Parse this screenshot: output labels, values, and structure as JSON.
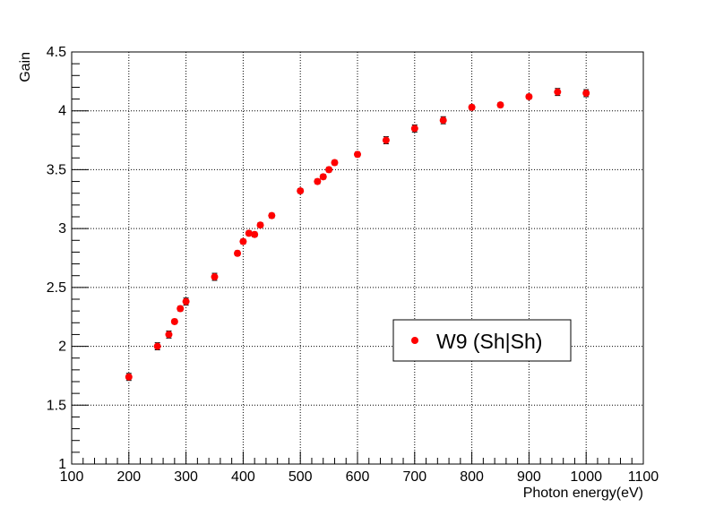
{
  "chart_data": {
    "type": "scatter",
    "title": "",
    "xlabel": "Photon energy(eV)",
    "ylabel": "Gain",
    "xlim": [
      100,
      1100
    ],
    "ylim": [
      1,
      4.5
    ],
    "x_ticks": [
      100,
      200,
      300,
      400,
      500,
      600,
      700,
      800,
      900,
      1000,
      1100
    ],
    "x_tick_labels": [
      "100",
      "200",
      "300",
      "400",
      "500",
      "600",
      "700",
      "800",
      "900",
      "1000",
      "1100"
    ],
    "y_ticks": [
      1,
      1.5,
      2,
      2.5,
      3,
      3.5,
      4,
      4.5
    ],
    "y_tick_labels": [
      "1",
      "1.5",
      "2",
      "2.5",
      "3",
      "3.5",
      "4",
      "4.5"
    ],
    "grid": true,
    "legend_position": "center-right",
    "marker_color": "#ff0000",
    "series": [
      {
        "name": "W9 (Sh|Sh)",
        "points": [
          {
            "x": 200,
            "y": 1.74,
            "err": 0.03
          },
          {
            "x": 250,
            "y": 2.0,
            "err": 0.03
          },
          {
            "x": 270,
            "y": 2.1,
            "err": 0.03
          },
          {
            "x": 280,
            "y": 2.21,
            "err": 0.02
          },
          {
            "x": 290,
            "y": 2.32,
            "err": 0.02
          },
          {
            "x": 300,
            "y": 2.38,
            "err": 0.03
          },
          {
            "x": 350,
            "y": 2.59,
            "err": 0.03
          },
          {
            "x": 390,
            "y": 2.79,
            "err": 0.02
          },
          {
            "x": 400,
            "y": 2.89,
            "err": 0.02
          },
          {
            "x": 410,
            "y": 2.96,
            "err": 0.02
          },
          {
            "x": 420,
            "y": 2.95,
            "err": 0.02
          },
          {
            "x": 430,
            "y": 3.03,
            "err": 0.02
          },
          {
            "x": 450,
            "y": 3.11,
            "err": 0.02
          },
          {
            "x": 500,
            "y": 3.32,
            "err": 0.02
          },
          {
            "x": 530,
            "y": 3.4,
            "err": 0.02
          },
          {
            "x": 540,
            "y": 3.44,
            "err": 0.02
          },
          {
            "x": 550,
            "y": 3.5,
            "err": 0.02
          },
          {
            "x": 560,
            "y": 3.56,
            "err": 0.02
          },
          {
            "x": 600,
            "y": 3.63,
            "err": 0.02
          },
          {
            "x": 650,
            "y": 3.75,
            "err": 0.03
          },
          {
            "x": 700,
            "y": 3.85,
            "err": 0.03
          },
          {
            "x": 750,
            "y": 3.92,
            "err": 0.03
          },
          {
            "x": 800,
            "y": 4.03,
            "err": 0.02
          },
          {
            "x": 850,
            "y": 4.05,
            "err": 0.02
          },
          {
            "x": 900,
            "y": 4.12,
            "err": 0.02
          },
          {
            "x": 950,
            "y": 4.16,
            "err": 0.03
          },
          {
            "x": 1000,
            "y": 4.15,
            "err": 0.03
          }
        ]
      }
    ]
  }
}
